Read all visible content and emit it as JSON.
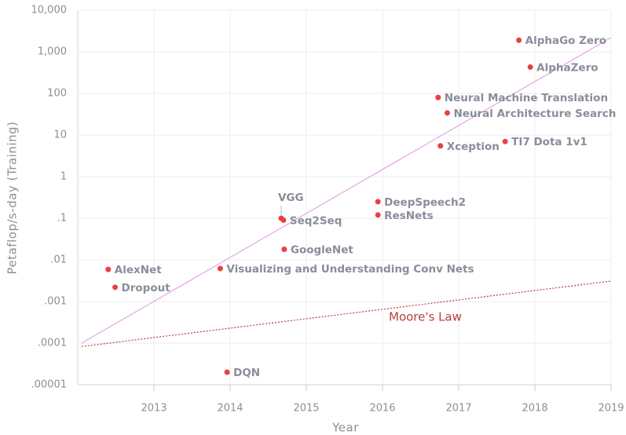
{
  "chart_data": {
    "type": "scatter",
    "x_label": "Year",
    "y_label": "Petaflop/s-day (Training)",
    "log_y": true,
    "grid": true,
    "color": "#e8413f",
    "xlim": [
      2012,
      2019
    ],
    "xticks": [
      2013,
      2014,
      2015,
      2016,
      2017,
      2018,
      2019
    ],
    "ylim": [
      1e-05,
      10000
    ],
    "yticks": [
      {
        "value": 10000,
        "label": "10,000"
      },
      {
        "value": 1000,
        "label": "1,000"
      },
      100,
      10,
      1,
      {
        "value": 0.1,
        "label": ".1"
      },
      {
        "value": 0.01,
        "label": ".01"
      },
      {
        "value": 0.001,
        "label": ".001"
      },
      {
        "value": 0.0001,
        "label": ".0001"
      },
      {
        "value": 1e-05,
        "label": ".00001"
      }
    ],
    "points": [
      {
        "name": "AlexNet",
        "x": 2012.4,
        "value": 0.0059
      },
      {
        "name": "Dropout",
        "x": 2012.49,
        "value": 0.0022
      },
      {
        "name": "Visualizing and Understanding Conv Nets",
        "x": 2013.87,
        "value": 0.0062
      },
      {
        "name": "DQN",
        "x": 2013.96,
        "value": 2e-05
      },
      {
        "name": "VGG",
        "x": 2014.67,
        "value": 0.1
      },
      {
        "name": "Seq2Seq",
        "x": 2014.7,
        "value": 0.09
      },
      {
        "name": "GoogleNet",
        "x": 2014.71,
        "value": 0.018
      },
      {
        "name": "DeepSpeech2",
        "x": 2015.94,
        "value": 0.25
      },
      {
        "name": "ResNets",
        "x": 2015.94,
        "value": 0.12
      },
      {
        "name": "Neural Machine Translation",
        "x": 2016.73,
        "value": 80
      },
      {
        "name": "Neural Architecture Search",
        "x": 2016.85,
        "value": 34
      },
      {
        "name": "Xception",
        "x": 2016.76,
        "value": 5.5
      },
      {
        "name": "TI7 Dota 1v1",
        "x": 2017.61,
        "value": 7
      },
      {
        "name": "AlphaGo Zero",
        "x": 2017.79,
        "value": 1900
      },
      {
        "name": "AlphaZero",
        "x": 2017.94,
        "value": 430
      }
    ],
    "trend_lines": [
      {
        "color": "#e4a6e6",
        "style": "solid",
        "x": [
          2012.05,
          2019
        ],
        "values": [
          0.0001,
          2200
        ]
      },
      {
        "color": "#b5403a",
        "style": "dotted",
        "label": "Moore's Law",
        "x": [
          2012.05,
          2019
        ],
        "values": [
          8.3e-05,
          0.0031
        ]
      }
    ]
  }
}
